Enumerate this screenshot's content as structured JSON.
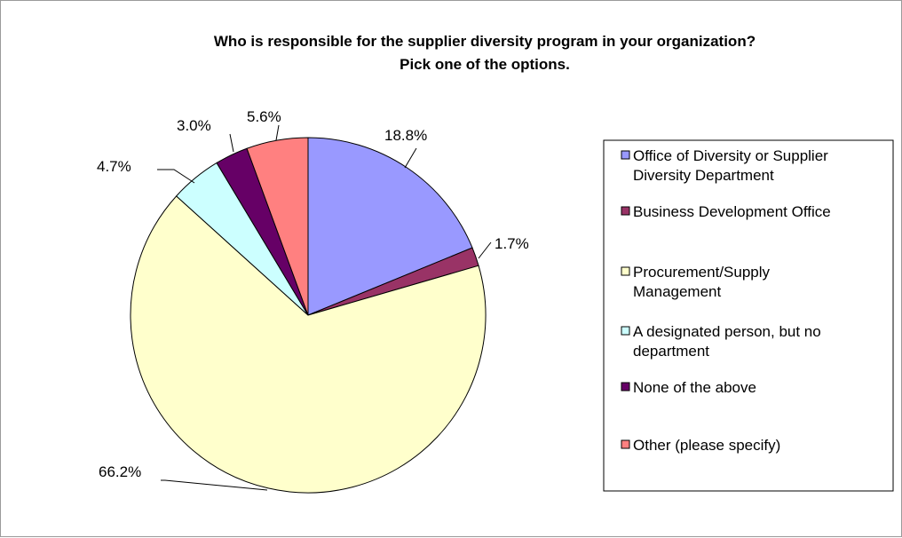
{
  "chart_data": {
    "type": "pie",
    "title": "Who is responsible for the supplier diversity program in your organization?",
    "subtitle": "Pick one of the options.",
    "legend_position": "right",
    "slices": [
      {
        "name": "Office of Diversity or Supplier Diversity Department",
        "legend_lines": [
          "Office of Diversity or Supplier",
          "Diversity Department"
        ],
        "value": 18.8,
        "label": "18.8%",
        "color": "#9999ff"
      },
      {
        "name": "Business Development  Office",
        "legend_lines": [
          "Business Development  Office"
        ],
        "value": 1.7,
        "label": "1.7%",
        "color": "#993366"
      },
      {
        "name": "Procurement/Supply Management",
        "legend_lines": [
          "Procurement/Supply",
          "Management"
        ],
        "value": 66.2,
        "label": "66.2%",
        "color": "#ffffcc"
      },
      {
        "name": "A designated person, but no department",
        "legend_lines": [
          "A designated person, but no",
          "department"
        ],
        "value": 4.7,
        "label": "4.7%",
        "color": "#ccffff"
      },
      {
        "name": "None of the above",
        "legend_lines": [
          "None of the above"
        ],
        "value": 3.0,
        "label": "3.0%",
        "color": "#660066"
      },
      {
        "name": "Other (please specify)",
        "legend_lines": [
          "Other (please specify)"
        ],
        "value": 5.6,
        "label": "5.6%",
        "color": "#ff8080"
      }
    ]
  }
}
